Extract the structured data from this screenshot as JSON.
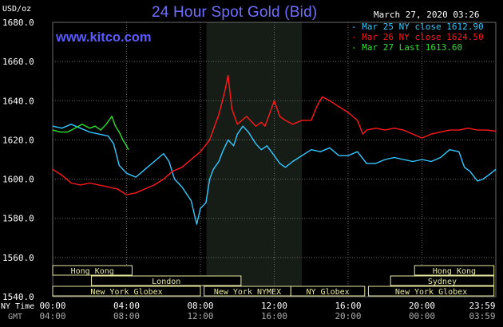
{
  "header": {
    "title": "24 Hour Spot Gold (Bid)",
    "units": "USD/oz",
    "timestamp": "March 27, 2020 03:26",
    "website": "www.kitco.com"
  },
  "legend": [
    {
      "label": "- Mar 25 NY close 1612.90",
      "color": "#35c8ff"
    },
    {
      "label": "- Mar 26 NY close 1624.50",
      "color": "#ff1a1a"
    },
    {
      "label": "- Mar 27 Last 1613.60",
      "color": "#2fe02f"
    }
  ],
  "session_bars": [
    {
      "label": "Hong Kong",
      "color": "#e8e8a0"
    },
    {
      "label": "London",
      "color": "#e8e8a0"
    },
    {
      "label": "New York Globex",
      "color": "#e8e8a0"
    },
    {
      "label": "New York NYMEX",
      "color": "#e8e8a0"
    },
    {
      "label": "NY Globex",
      "color": "#e8e8a0"
    },
    {
      "label": "Hong Kong",
      "color": "#e8e8a0"
    },
    {
      "label": "Sydney",
      "color": "#e8e8a0"
    },
    {
      "label": "New York Globex",
      "color": "#e8e8a0"
    }
  ],
  "time_axis": {
    "ny_label": "NY Time",
    "gmt_label": "GMT",
    "ny_ticks": [
      "00:00",
      "04:00",
      "08:00",
      "12:00",
      "16:00",
      "20:00",
      "23:59"
    ],
    "gmt_ticks": [
      "04:00",
      "08:00",
      "12:00",
      "16:00",
      "20:00",
      "00:00",
      "03:59"
    ]
  },
  "colors": {
    "background": "#000000",
    "grid": "#6a6a6a",
    "session_bar": "#e8e8a0",
    "nymex_shade": "#161d16",
    "axis_text": "#ffffff",
    "title": "#6f6fff"
  },
  "chart_data": {
    "type": "line",
    "title": "24 Hour Spot Gold (Bid)",
    "ylabel": "USD/oz",
    "xlabel": "",
    "ylim": [
      1540,
      1680
    ],
    "xlim": [
      0,
      24
    ],
    "yticks": [
      "1540.0",
      "1560.0",
      "1580.0",
      "1600.0",
      "1620.0",
      "1640.0",
      "1660.0",
      "1680.0"
    ],
    "grid": true,
    "legend_position": "top-right",
    "series": [
      {
        "name": "Mar 25 NY close 1612.90",
        "color": "#35c8ff",
        "points": [
          [
            0,
            1627
          ],
          [
            0.5,
            1626
          ],
          [
            1,
            1628
          ],
          [
            1.5,
            1626
          ],
          [
            2,
            1624
          ],
          [
            2.5,
            1623
          ],
          [
            3,
            1622
          ],
          [
            3.3,
            1618
          ],
          [
            3.6,
            1607
          ],
          [
            4,
            1603
          ],
          [
            4.5,
            1601
          ],
          [
            5,
            1605
          ],
          [
            5.5,
            1609
          ],
          [
            6,
            1613
          ],
          [
            6.3,
            1609
          ],
          [
            6.6,
            1600
          ],
          [
            7,
            1596
          ],
          [
            7.5,
            1589
          ],
          [
            7.8,
            1577
          ],
          [
            8,
            1585
          ],
          [
            8.3,
            1588
          ],
          [
            8.5,
            1600
          ],
          [
            8.7,
            1605
          ],
          [
            9,
            1609
          ],
          [
            9.2,
            1614
          ],
          [
            9.5,
            1620
          ],
          [
            9.8,
            1617
          ],
          [
            10,
            1623
          ],
          [
            10.3,
            1627
          ],
          [
            10.6,
            1624
          ],
          [
            11,
            1618
          ],
          [
            11.3,
            1615
          ],
          [
            11.6,
            1617
          ],
          [
            12,
            1612
          ],
          [
            12.3,
            1608
          ],
          [
            12.6,
            1606
          ],
          [
            13,
            1609
          ],
          [
            13.5,
            1612
          ],
          [
            14,
            1615
          ],
          [
            14.5,
            1614
          ],
          [
            15,
            1616
          ],
          [
            15.5,
            1612
          ],
          [
            16,
            1612
          ],
          [
            16.5,
            1614
          ],
          [
            17,
            1608
          ],
          [
            17.5,
            1608
          ],
          [
            18,
            1610
          ],
          [
            18.5,
            1611
          ],
          [
            19,
            1610
          ],
          [
            19.5,
            1609
          ],
          [
            20,
            1610
          ],
          [
            20.5,
            1609
          ],
          [
            21,
            1611
          ],
          [
            21.5,
            1615
          ],
          [
            22,
            1614
          ],
          [
            22.3,
            1606
          ],
          [
            22.6,
            1604
          ],
          [
            23,
            1599
          ],
          [
            23.3,
            1600
          ],
          [
            23.6,
            1602
          ],
          [
            24,
            1605
          ]
        ]
      },
      {
        "name": "Mar 26 NY close 1624.50",
        "color": "#ff1a1a",
        "points": [
          [
            0,
            1605
          ],
          [
            0.5,
            1602
          ],
          [
            1,
            1598
          ],
          [
            1.5,
            1597
          ],
          [
            2,
            1598
          ],
          [
            2.5,
            1597
          ],
          [
            3,
            1596
          ],
          [
            3.5,
            1595
          ],
          [
            4,
            1592
          ],
          [
            4.5,
            1593
          ],
          [
            5,
            1595
          ],
          [
            5.5,
            1597
          ],
          [
            6,
            1600
          ],
          [
            6.5,
            1604
          ],
          [
            7,
            1606
          ],
          [
            7.5,
            1610
          ],
          [
            8,
            1614
          ],
          [
            8.5,
            1620
          ],
          [
            9,
            1633
          ],
          [
            9.3,
            1644
          ],
          [
            9.5,
            1653
          ],
          [
            9.7,
            1636
          ],
          [
            10,
            1628
          ],
          [
            10.5,
            1632
          ],
          [
            11,
            1627
          ],
          [
            11.3,
            1629
          ],
          [
            11.5,
            1627
          ],
          [
            12,
            1640
          ],
          [
            12.3,
            1632
          ],
          [
            12.6,
            1630
          ],
          [
            13,
            1628
          ],
          [
            13.5,
            1630
          ],
          [
            14,
            1630
          ],
          [
            14.3,
            1637
          ],
          [
            14.6,
            1642
          ],
          [
            15,
            1640
          ],
          [
            15.5,
            1637
          ],
          [
            16,
            1634
          ],
          [
            16.5,
            1630
          ],
          [
            16.8,
            1623
          ],
          [
            17,
            1625
          ],
          [
            17.5,
            1626
          ],
          [
            18,
            1625
          ],
          [
            18.5,
            1626
          ],
          [
            19,
            1625
          ],
          [
            19.5,
            1623
          ],
          [
            20,
            1621
          ],
          [
            20.5,
            1623
          ],
          [
            21,
            1624
          ],
          [
            21.5,
            1625
          ],
          [
            22,
            1625
          ],
          [
            22.5,
            1626
          ],
          [
            23,
            1625
          ],
          [
            23.5,
            1625
          ],
          [
            24,
            1624.5
          ]
        ]
      },
      {
        "name": "Mar 27 Last 1613.60",
        "color": "#2fe02f",
        "points": [
          [
            0,
            1625
          ],
          [
            0.4,
            1624
          ],
          [
            0.8,
            1624
          ],
          [
            1.2,
            1626
          ],
          [
            1.6,
            1628
          ],
          [
            2,
            1626
          ],
          [
            2.3,
            1627
          ],
          [
            2.6,
            1625
          ],
          [
            2.9,
            1628
          ],
          [
            3.2,
            1632
          ],
          [
            3.4,
            1627
          ],
          [
            3.6,
            1624
          ],
          [
            3.8,
            1620
          ],
          [
            4,
            1617
          ],
          [
            4.1,
            1615
          ]
        ]
      }
    ]
  }
}
